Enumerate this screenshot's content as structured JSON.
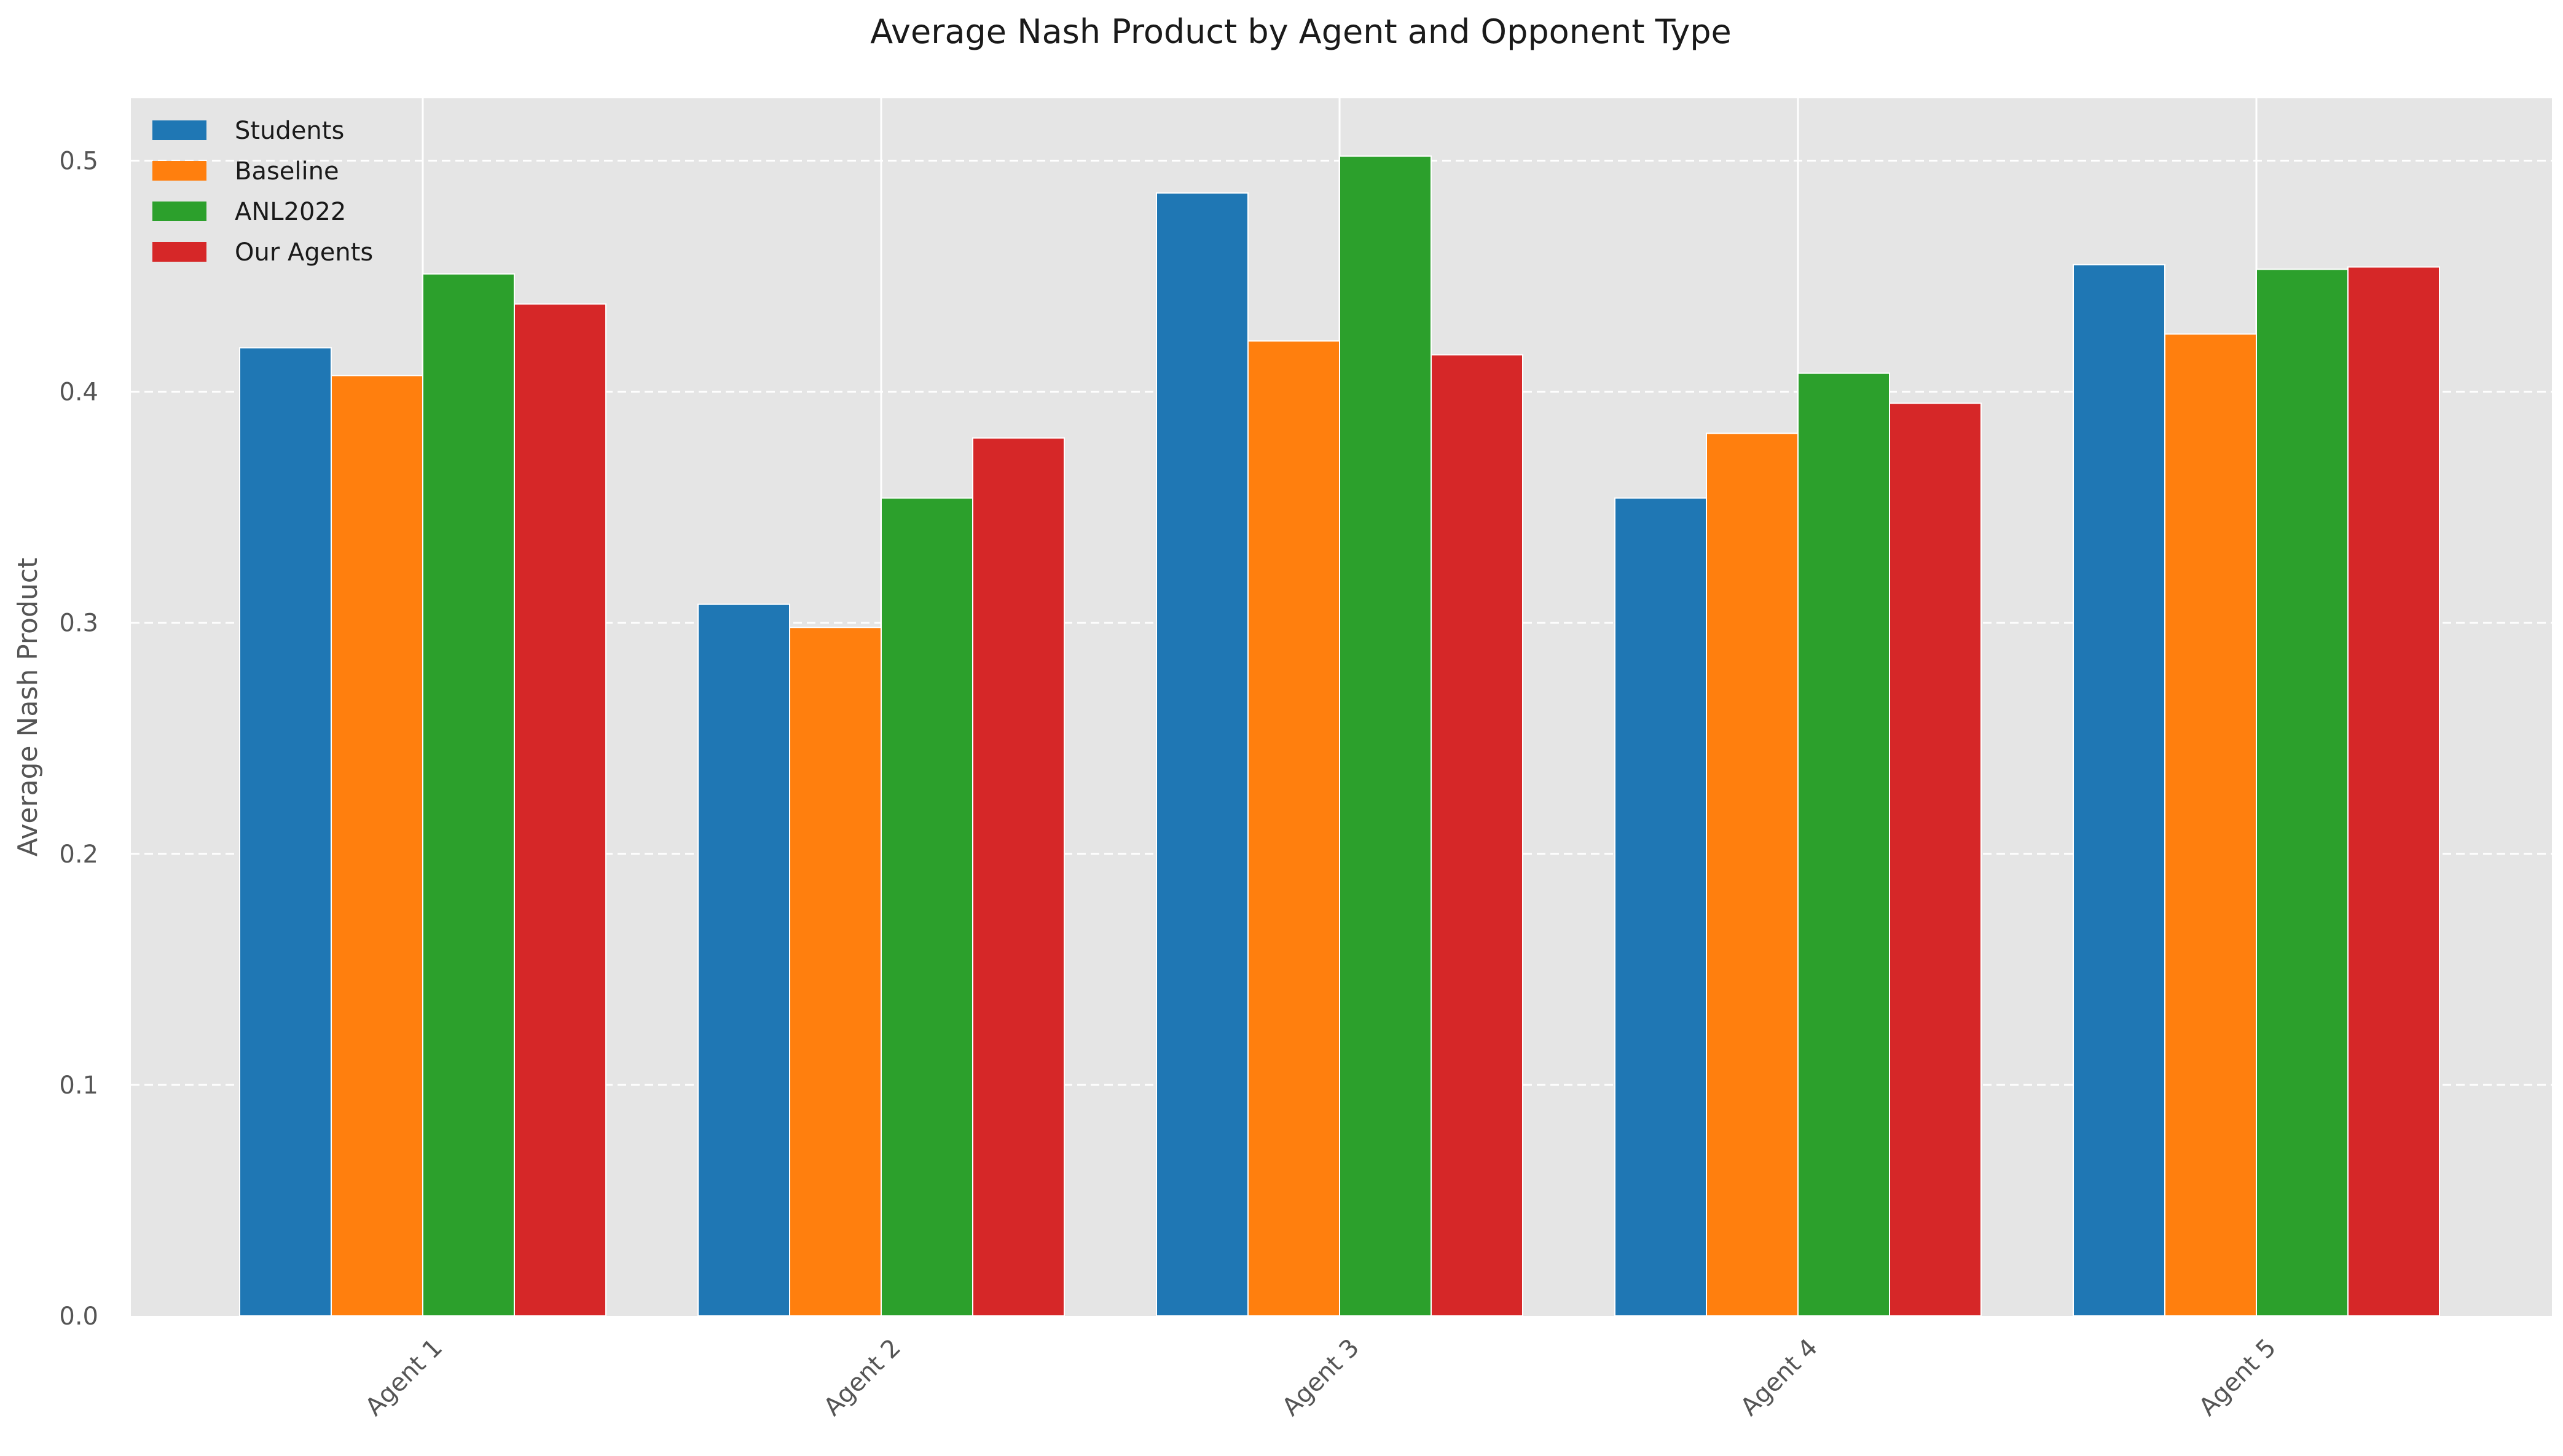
{
  "chart_data": {
    "type": "bar",
    "title": "Average Nash Product by Agent and Opponent Type",
    "xlabel": "",
    "ylabel": "Average Nash Product",
    "categories": [
      "Agent 1",
      "Agent 2",
      "Agent 3",
      "Agent 4",
      "Agent 5"
    ],
    "series": [
      {
        "name": "Students",
        "color": "#1f77b4",
        "values": [
          0.419,
          0.308,
          0.486,
          0.354,
          0.455
        ]
      },
      {
        "name": "Baseline",
        "color": "#ff7f0e",
        "values": [
          0.407,
          0.298,
          0.422,
          0.382,
          0.425
        ]
      },
      {
        "name": "ANL2022",
        "color": "#2ca02c",
        "values": [
          0.451,
          0.354,
          0.502,
          0.408,
          0.453
        ]
      },
      {
        "name": "Our Agents",
        "color": "#d62728",
        "values": [
          0.438,
          0.38,
          0.416,
          0.395,
          0.454
        ]
      }
    ],
    "ylim": [
      0,
      0.527
    ],
    "yticks": [
      0.0,
      0.1,
      0.2,
      0.3,
      0.4,
      0.5
    ],
    "ytick_labels": [
      "0.0",
      "0.1",
      "0.2",
      "0.3",
      "0.4",
      "0.5"
    ],
    "grid": true,
    "grid_style": "dashed horizontal, solid vertical",
    "legend_position": "top-left",
    "plot_background": "#e5e5e5"
  }
}
